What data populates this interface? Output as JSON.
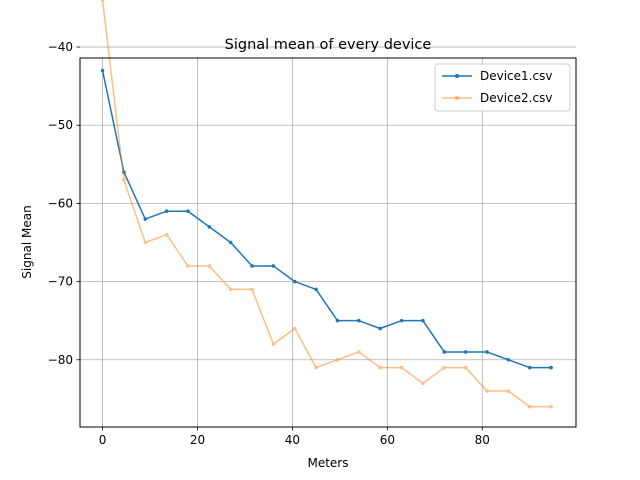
{
  "chart_data": {
    "type": "line",
    "title": "Signal mean of every device",
    "xlabel": "Meters",
    "ylabel": "Signal Mean",
    "xlim": [
      -4.75,
      99.75
    ],
    "ylim": [
      -88.6,
      -41.4
    ],
    "xticks": [
      0,
      20,
      40,
      60,
      80
    ],
    "xtick_labels": [
      "0",
      "20",
      "40",
      "60",
      "80"
    ],
    "yticks": [
      -40,
      -50,
      -60,
      -70,
      -80
    ],
    "ytick_labels": [
      "−40",
      "−50",
      "−60",
      "−70",
      "−80"
    ],
    "grid": true,
    "legend_position": "top-right",
    "series": [
      {
        "name": "Device1.csv",
        "color": "#1f77b4",
        "opacity": 1.0,
        "x": [
          0,
          4.5,
          9,
          13.5,
          18,
          22.5,
          27,
          31.5,
          36,
          40.5,
          45,
          49.5,
          54,
          58.5,
          63,
          67.5,
          72,
          76.5,
          81,
          85.5,
          90,
          94.5
        ],
        "values": [
          -43,
          -56,
          -62,
          -61,
          -61,
          -63,
          -65,
          -68,
          -68,
          -70,
          -71,
          -75,
          -75,
          -76,
          -75,
          -75,
          -79,
          -79,
          -79,
          -80,
          -81,
          -81
        ]
      },
      {
        "name": "Device2.csv",
        "color": "#ff7f0e",
        "opacity": 0.5,
        "x": [
          0,
          4.5,
          9,
          13.5,
          18,
          22.5,
          27,
          31.5,
          36,
          40.5,
          45,
          49.5,
          54,
          58.5,
          63,
          67.5,
          72,
          76.5,
          81,
          85.5,
          90,
          94.5
        ],
        "values": [
          -34,
          -57,
          -65,
          -64,
          -68,
          -68,
          -71,
          -71,
          -78,
          -76,
          -81,
          -80,
          -79,
          -81,
          -81,
          -83,
          -81,
          -81,
          -84,
          -84,
          -86,
          -86
        ]
      }
    ]
  }
}
